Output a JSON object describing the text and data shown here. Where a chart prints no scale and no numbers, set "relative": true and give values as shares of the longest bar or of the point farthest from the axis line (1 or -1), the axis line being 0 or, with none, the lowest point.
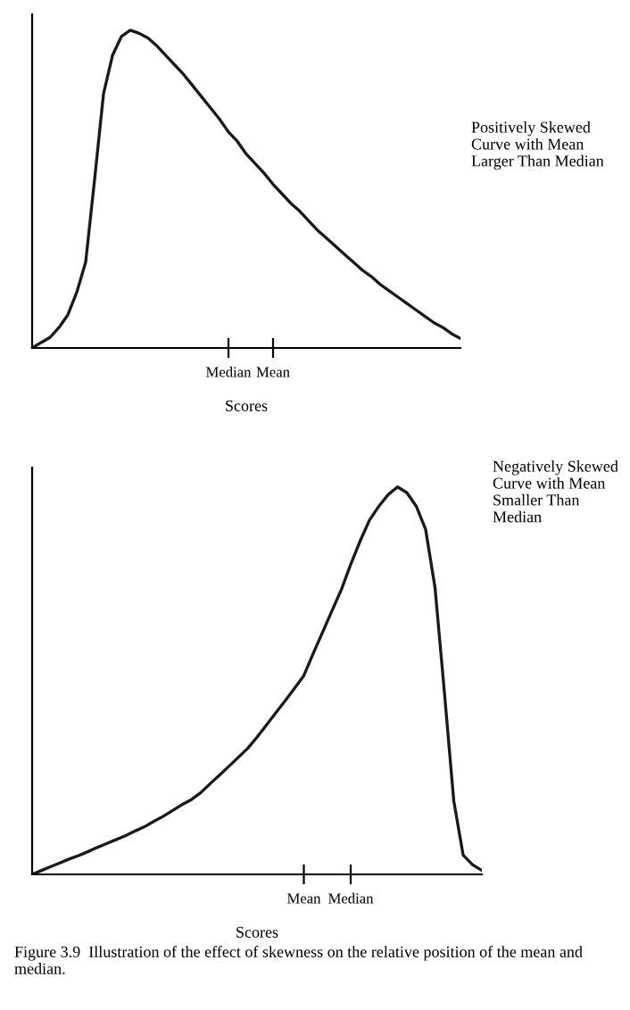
{
  "chart_data": [
    {
      "type": "line",
      "relative": true,
      "color": "#1a1a1a",
      "xlabel": "Scores",
      "tick_labels": "x",
      "grid": false,
      "marker": "none",
      "line_style": "solid",
      "categories": [
        null,
        null,
        null,
        null,
        null,
        null,
        null,
        null,
        null,
        null,
        null,
        null,
        null,
        null,
        null,
        null,
        null,
        null,
        null,
        null,
        null,
        null,
        "Median",
        null,
        null,
        null,
        null,
        "Mean",
        null,
        null,
        null,
        null,
        null,
        null,
        null,
        null,
        null,
        null,
        null,
        null,
        null,
        null,
        null,
        null,
        null,
        null,
        null,
        null,
        null
      ],
      "values": [
        0,
        0.017,
        0.033,
        0.064,
        0.104,
        0.175,
        0.27,
        0.53,
        0.8,
        0.92,
        0.98,
        1.0,
        0.99,
        0.975,
        0.95,
        0.92,
        0.89,
        0.86,
        0.825,
        0.79,
        0.755,
        0.72,
        0.68,
        0.65,
        0.61,
        0.58,
        0.55,
        0.515,
        0.485,
        0.455,
        0.43,
        0.4,
        0.37,
        0.345,
        0.32,
        0.295,
        0.27,
        0.245,
        0.225,
        0.2,
        0.18,
        0.16,
        0.14,
        0.12,
        0.1,
        0.08,
        0.065,
        0.045,
        0.03
      ],
      "annotations": [
        "Positively Skewed Curve with Mean Larger Than Median"
      ]
    },
    {
      "type": "line",
      "relative": true,
      "color": "#1a1a1a",
      "xlabel": "Scores",
      "tick_labels": "x",
      "grid": false,
      "marker": "none",
      "line_style": "solid",
      "categories": [
        null,
        null,
        null,
        null,
        null,
        null,
        null,
        null,
        null,
        null,
        null,
        null,
        null,
        null,
        null,
        null,
        null,
        null,
        null,
        null,
        null,
        null,
        null,
        null,
        null,
        null,
        null,
        null,
        null,
        "Mean",
        null,
        null,
        null,
        null,
        "Median",
        null,
        null,
        null,
        null,
        null,
        null,
        null,
        null,
        null,
        null,
        null,
        null,
        null,
        null
      ],
      "values": [
        0,
        0.01,
        0.02,
        0.03,
        0.04,
        0.049,
        0.059,
        0.07,
        0.08,
        0.09,
        0.1,
        0.112,
        0.123,
        0.137,
        0.15,
        0.165,
        0.18,
        0.193,
        0.211,
        0.234,
        0.256,
        0.279,
        0.302,
        0.325,
        0.354,
        0.385,
        0.417,
        0.448,
        0.48,
        0.513,
        0.57,
        0.625,
        0.68,
        0.735,
        0.8,
        0.86,
        0.914,
        0.95,
        0.98,
        1.0,
        0.985,
        0.95,
        0.89,
        0.74,
        0.47,
        0.19,
        0.05,
        0.025,
        0.01
      ],
      "annotations": [
        "Negatively Skewed Curve with Mean Smaller Than Median",
        "Figure 3.9  Illustration of the effect of skewness on the relative position of the mean and median."
      ]
    }
  ]
}
